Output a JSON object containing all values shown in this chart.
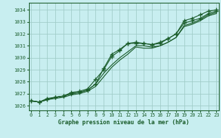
{
  "xlabel": "Graphe pression niveau de la mer (hPa)",
  "bg_color": "#c8eef0",
  "grid_color": "#a0ccc8",
  "line_color": "#1a5c2a",
  "text_color": "#1a5c2a",
  "xlim": [
    -0.3,
    23.3
  ],
  "ylim": [
    1025.6,
    1034.6
  ],
  "yticks": [
    1026,
    1027,
    1028,
    1029,
    1030,
    1031,
    1032,
    1033,
    1034
  ],
  "xticks": [
    0,
    1,
    2,
    3,
    4,
    5,
    6,
    7,
    8,
    9,
    10,
    11,
    12,
    13,
    14,
    15,
    16,
    17,
    18,
    19,
    20,
    21,
    22,
    23
  ],
  "series": [
    [
      1026.4,
      1026.3,
      1026.6,
      1026.7,
      1026.8,
      1027.1,
      1027.2,
      1027.4,
      1028.2,
      1029.0,
      1030.1,
      1030.6,
      1031.2,
      1031.2,
      1031.2,
      1031.1,
      1031.2,
      1031.6,
      1032.0,
      1032.9,
      1033.1,
      1033.3,
      1033.7,
      1033.9
    ],
    [
      1026.4,
      1026.3,
      1026.5,
      1026.7,
      1026.8,
      1027.0,
      1027.1,
      1027.3,
      1027.8,
      1028.7,
      1029.4,
      1030.0,
      1030.5,
      1031.0,
      1031.0,
      1030.9,
      1031.0,
      1031.3,
      1031.7,
      1032.7,
      1032.9,
      1033.2,
      1033.6,
      1033.8
    ],
    [
      1026.4,
      1026.3,
      1026.5,
      1026.7,
      1026.8,
      1027.0,
      1027.1,
      1027.3,
      1027.8,
      1029.1,
      1030.3,
      1030.7,
      1031.2,
      1031.3,
      1031.2,
      1031.1,
      1031.3,
      1031.6,
      1032.0,
      1033.1,
      1033.3,
      1033.6,
      1033.9,
      1034.0
    ],
    [
      1026.4,
      1026.3,
      1026.5,
      1026.6,
      1026.7,
      1026.9,
      1027.0,
      1027.2,
      1027.6,
      1028.4,
      1029.2,
      1029.8,
      1030.3,
      1030.9,
      1030.8,
      1030.8,
      1031.0,
      1031.3,
      1031.7,
      1032.6,
      1032.8,
      1033.1,
      1033.5,
      1033.7
    ]
  ],
  "marker_series": [
    0,
    2
  ],
  "marker": "+",
  "markersize": 4.5,
  "linewidth": 0.85
}
